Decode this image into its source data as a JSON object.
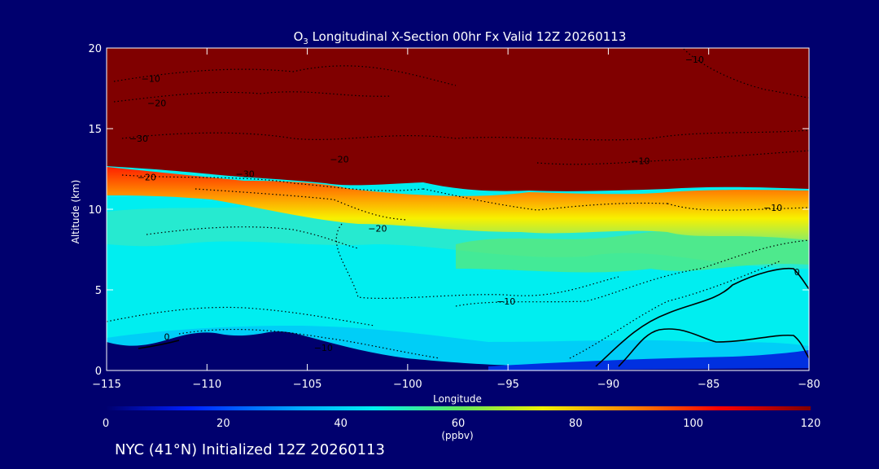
{
  "chart_data": {
    "type": "heatmap",
    "title": "O3 Longitudinal X-Section 00hr  Fx Valid 12Z 20260113",
    "title_main": "O",
    "title_sub": "3",
    "title_rest": " Longitudinal X-Section 00hr  Fx Valid 12Z 20260113",
    "xlabel": "Longitude",
    "ylabel": "Altitude (km)",
    "xlim": [
      -115,
      -80
    ],
    "ylim": [
      0,
      20
    ],
    "x_ticks": [
      -115,
      -110,
      -105,
      -100,
      -95,
      -90,
      -85,
      -80
    ],
    "x_tick_labels": [
      "−115",
      "−110",
      "−105",
      "−100",
      "−95",
      "−90",
      "−85",
      "−80"
    ],
    "y_ticks": [
      0,
      5,
      10,
      15,
      20
    ],
    "y_tick_labels": [
      "0",
      "5",
      "10",
      "15",
      "20"
    ],
    "colorbar": {
      "min": 0,
      "max": 120,
      "ticks": [
        0,
        20,
        40,
        60,
        80,
        100,
        120
      ],
      "tick_labels": [
        "0",
        "20",
        "40",
        "60",
        "80",
        "100",
        "120"
      ],
      "units": "(ppbv)"
    },
    "tropopause_height_km": [
      [
        -115,
        12.3
      ],
      [
        -112,
        11.7
      ],
      [
        -109,
        11.8
      ],
      [
        -106,
        11.4
      ],
      [
        -104,
        11.2
      ],
      [
        -102,
        10.9
      ],
      [
        -99,
        10.6
      ],
      [
        -96,
        10.8
      ],
      [
        -94,
        11.0
      ],
      [
        -92,
        10.8
      ],
      [
        -89,
        10.6
      ],
      [
        -86,
        10.2
      ],
      [
        -83,
        10.4
      ],
      [
        -80,
        10.3
      ]
    ],
    "terrain_height_km": [
      [
        -115,
        1.8
      ],
      [
        -113,
        1.4
      ],
      [
        -111,
        2.3
      ],
      [
        -110,
        2.4
      ],
      [
        -108,
        2.2
      ],
      [
        -106,
        2.5
      ],
      [
        -105,
        2.2
      ],
      [
        -103,
        1.6
      ],
      [
        -100,
        1.0
      ],
      [
        -97,
        0.5
      ],
      [
        -94,
        0.3
      ],
      [
        -90,
        0.4
      ],
      [
        -87,
        0.5
      ],
      [
        -84,
        0.5
      ],
      [
        -80,
        0.5
      ]
    ],
    "contour_labels": [
      {
        "text": "−10",
        "x": -112.8,
        "y": 17.9
      },
      {
        "text": "−20",
        "x": -112.5,
        "y": 16.4
      },
      {
        "text": "−30",
        "x": -113.4,
        "y": 14.2
      },
      {
        "text": "−20",
        "x": -113.0,
        "y": 11.8
      },
      {
        "text": "−30",
        "x": -108.1,
        "y": 12.0
      },
      {
        "text": "−20",
        "x": -103.4,
        "y": 12.9
      },
      {
        "text": "−20",
        "x": -101.5,
        "y": 8.6
      },
      {
        "text": "−10",
        "x": -95.1,
        "y": 4.1
      },
      {
        "text": "−10",
        "x": -104.2,
        "y": 1.2
      },
      {
        "text": "−10",
        "x": -88.4,
        "y": 12.8
      },
      {
        "text": "−10",
        "x": -81.8,
        "y": 9.9
      },
      {
        "text": "−10",
        "x": -85.7,
        "y": 19.1
      },
      {
        "text": "0",
        "x": -112.0,
        "y": 1.9
      },
      {
        "text": "0",
        "x": -80.6,
        "y": 5.9
      }
    ]
  },
  "footer": {
    "text": "NYC (41°N) Initialized 12Z 20260113"
  },
  "colors": {
    "background": "#00006e",
    "axes": "#ffffff",
    "stratosphere": "#800000",
    "ground": "#00006e"
  }
}
